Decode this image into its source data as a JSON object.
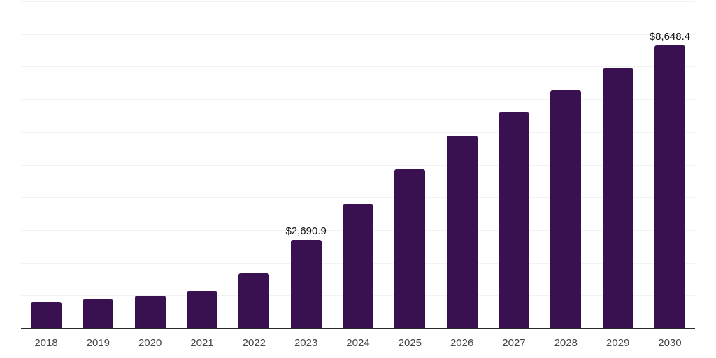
{
  "chart_data": {
    "type": "bar",
    "title": "",
    "xlabel": "",
    "ylabel": "",
    "categories": [
      "2018",
      "2019",
      "2020",
      "2021",
      "2022",
      "2023",
      "2024",
      "2025",
      "2026",
      "2027",
      "2028",
      "2029",
      "2030"
    ],
    "values": [
      790,
      880,
      985,
      1125,
      1665,
      2690.9,
      3795,
      4855,
      5880,
      6615,
      7280,
      7960,
      8648.4
    ],
    "value_labels": {
      "2023": "$2,690.9",
      "2030": "$8,648.4"
    },
    "ylim": [
      0,
      10000
    ],
    "gridline_step": 1000,
    "grid": "horizontal-only",
    "y_tick_labels_visible": false,
    "legend": "none"
  },
  "colors": {
    "bar": "#3A1150",
    "axis": "#2B2B2B",
    "gridline": "#F2F2F2",
    "tick_label": "#454545",
    "value_label": "#111111",
    "background": "#FFFFFF"
  }
}
